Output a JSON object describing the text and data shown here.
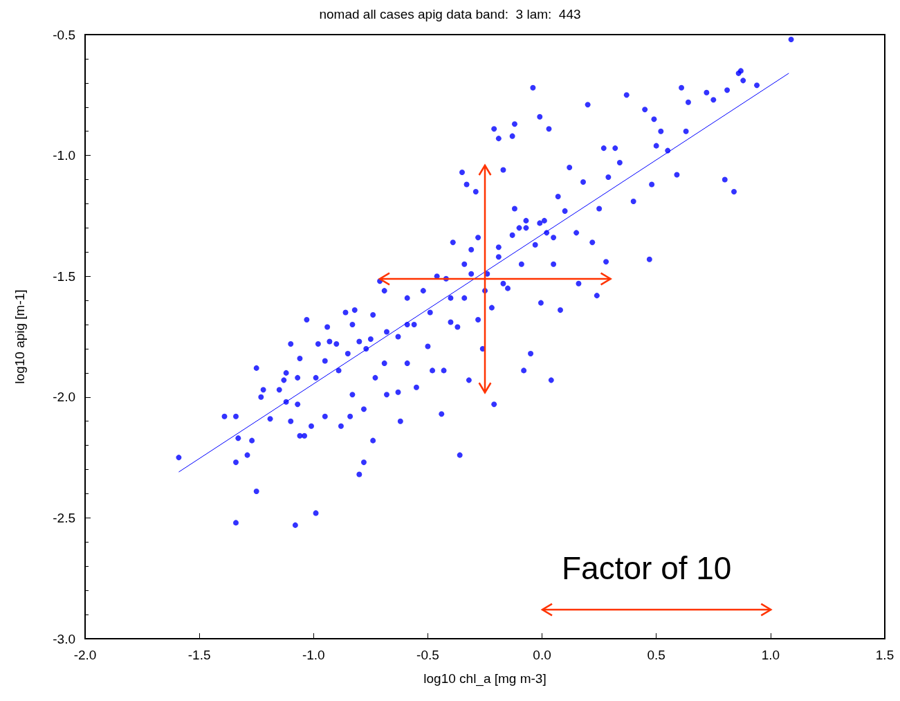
{
  "chart_data": {
    "type": "scatter",
    "title": "nomad all cases apig data band:  3 lam:  443",
    "xlabel": "log10 chl_a [mg m-3]",
    "ylabel": "log10 apig [m-1]",
    "annotations": [
      "Factor of 10"
    ],
    "xlim": [
      -2,
      1.5
    ],
    "xticks": [
      {
        "value": -2,
        "label": "-2.0"
      },
      {
        "value": -1.5,
        "label": "-1.5"
      },
      {
        "value": -1,
        "label": "-1.0"
      },
      {
        "value": -0.5,
        "label": "-0.5"
      },
      {
        "value": 0,
        "label": "0.0"
      },
      {
        "value": 0.5,
        "label": "0.5"
      },
      {
        "value": 1,
        "label": "1.0"
      },
      {
        "value": 1.5,
        "label": "1.5"
      }
    ],
    "ylim": [
      -3,
      -0.5
    ],
    "yticks": [
      {
        "value": -3,
        "label": "-3.0"
      },
      {
        "value": -2.5,
        "label": "-2.5"
      },
      {
        "value": -2,
        "label": "-2.0"
      },
      {
        "value": -1.5,
        "label": "-1.5"
      },
      {
        "value": -1,
        "label": "-1.0"
      },
      {
        "value": -0.5,
        "label": "-0.5"
      }
    ],
    "grid": false,
    "marker": "circle",
    "series": [
      {
        "color": "#0000ff",
        "x": [
          -1.59,
          -1.39,
          -1.34,
          -1.34,
          -1.34,
          -1.33,
          -1.29,
          -1.27,
          -1.25,
          -1.25,
          -1.23,
          -1.22,
          -1.19,
          -1.15,
          -1.13,
          -1.12,
          -1.12,
          -1.1,
          -1.1,
          -1.08,
          -1.07,
          -1.06,
          -1.06,
          -1.04,
          -1.03,
          -1.01,
          -0.99,
          -0.99,
          -0.98,
          -0.95,
          -0.94,
          -0.93,
          -0.9,
          -0.89,
          -0.88,
          -0.86,
          -0.85,
          -0.84,
          -0.83,
          -0.82,
          -0.83,
          -0.8,
          -0.78,
          -0.78,
          -0.77,
          -0.75,
          -0.74,
          -0.74,
          -0.73,
          -0.71,
          -0.69,
          -0.69,
          -0.68,
          -0.63,
          -0.63,
          -0.62,
          -0.59,
          -0.59,
          -0.56,
          -0.55,
          -0.52,
          -0.5,
          -0.48,
          -0.44,
          -0.43,
          -0.42,
          -0.4,
          -0.39,
          -0.37,
          -0.36,
          -0.35,
          -0.34,
          -0.34,
          -0.33,
          -0.32,
          -0.31,
          -0.29,
          -0.28,
          -0.28,
          -0.26,
          -0.24,
          -0.22,
          -0.21,
          -0.21,
          -0.19,
          -0.19,
          -0.17,
          -0.17,
          -0.15,
          -0.13,
          -0.12,
          -0.12,
          -0.1,
          -0.09,
          -0.08,
          -0.07,
          -0.05,
          -0.04,
          -0.03,
          -0.01,
          -0.005,
          0.01,
          0.03,
          0.04,
          0.05,
          0.07,
          0.08,
          0.1,
          0.12,
          0.15,
          0.16,
          0.18,
          0.2,
          0.22,
          0.24,
          0.25,
          0.27,
          0.28,
          0.29,
          0.32,
          0.34,
          0.37,
          0.4,
          0.45,
          0.47,
          0.48,
          0.49,
          0.5,
          0.52,
          0.55,
          0.59,
          0.61,
          0.63,
          0.64,
          0.72,
          0.75,
          0.8,
          0.81,
          0.84,
          0.86,
          0.87,
          0.88,
          0.94,
          1.09,
          -0.25,
          -0.19,
          -0.13,
          -0.07,
          -0.01,
          0.02,
          0.05,
          -0.4,
          -0.49,
          -0.59,
          -0.68,
          -0.8,
          -0.95,
          -1.07,
          -0.46,
          -0.31
        ],
        "values": [
          -2.25,
          -2.08,
          -2.08,
          -2.27,
          -2.52,
          -2.17,
          -2.24,
          -2.18,
          -2.39,
          -1.88,
          -2.0,
          -1.97,
          -2.09,
          -1.97,
          -1.93,
          -1.9,
          -2.02,
          -1.78,
          -2.1,
          -2.53,
          -2.03,
          -1.84,
          -2.16,
          -2.16,
          -1.68,
          -2.12,
          -2.48,
          -1.92,
          -1.78,
          -2.08,
          -1.71,
          -1.77,
          -1.78,
          -1.89,
          -2.12,
          -1.65,
          -1.82,
          -2.08,
          -1.7,
          -1.64,
          -1.99,
          -2.32,
          -2.27,
          -2.05,
          -1.8,
          -1.76,
          -2.18,
          -1.66,
          -1.92,
          -1.52,
          -1.56,
          -1.86,
          -1.99,
          -1.98,
          -1.75,
          -2.1,
          -1.59,
          -1.86,
          -1.7,
          -1.96,
          -1.56,
          -1.79,
          -1.89,
          -2.07,
          -1.89,
          -1.51,
          -1.69,
          -1.36,
          -1.71,
          -2.24,
          -1.07,
          -1.45,
          -1.59,
          -1.12,
          -1.93,
          -1.49,
          -1.15,
          -1.68,
          -1.34,
          -1.8,
          -1.49,
          -1.63,
          -2.03,
          -0.89,
          -1.38,
          -0.93,
          -1.06,
          -1.53,
          -1.55,
          -0.92,
          -0.87,
          -1.22,
          -1.3,
          -1.45,
          -1.89,
          -1.27,
          -1.82,
          -0.72,
          -1.37,
          -0.84,
          -1.61,
          -1.27,
          -0.89,
          -1.93,
          -1.45,
          -1.17,
          -1.64,
          -1.23,
          -1.05,
          -1.32,
          -1.53,
          -1.11,
          -0.79,
          -1.36,
          -1.58,
          -1.22,
          -0.97,
          -1.44,
          -1.09,
          -0.97,
          -1.03,
          -0.75,
          -1.19,
          -0.81,
          -1.43,
          -1.12,
          -0.85,
          -0.96,
          -0.9,
          -0.98,
          -1.08,
          -0.72,
          -0.9,
          -0.78,
          -0.74,
          -0.77,
          -1.1,
          -0.73,
          -1.15,
          -0.66,
          -0.65,
          -0.69,
          -0.71,
          -0.52,
          -1.56,
          -1.42,
          -1.33,
          -1.3,
          -1.28,
          -1.32,
          -1.34,
          -1.59,
          -1.65,
          -1.7,
          -1.73,
          -1.77,
          -1.85,
          -1.92,
          -1.5,
          -1.39
        ]
      },
      {
        "type": "line",
        "color": "#0000ff",
        "marker": "none",
        "x": [
          -1.59,
          1.08
        ],
        "values": [
          -2.31,
          -0.66
        ]
      }
    ]
  }
}
